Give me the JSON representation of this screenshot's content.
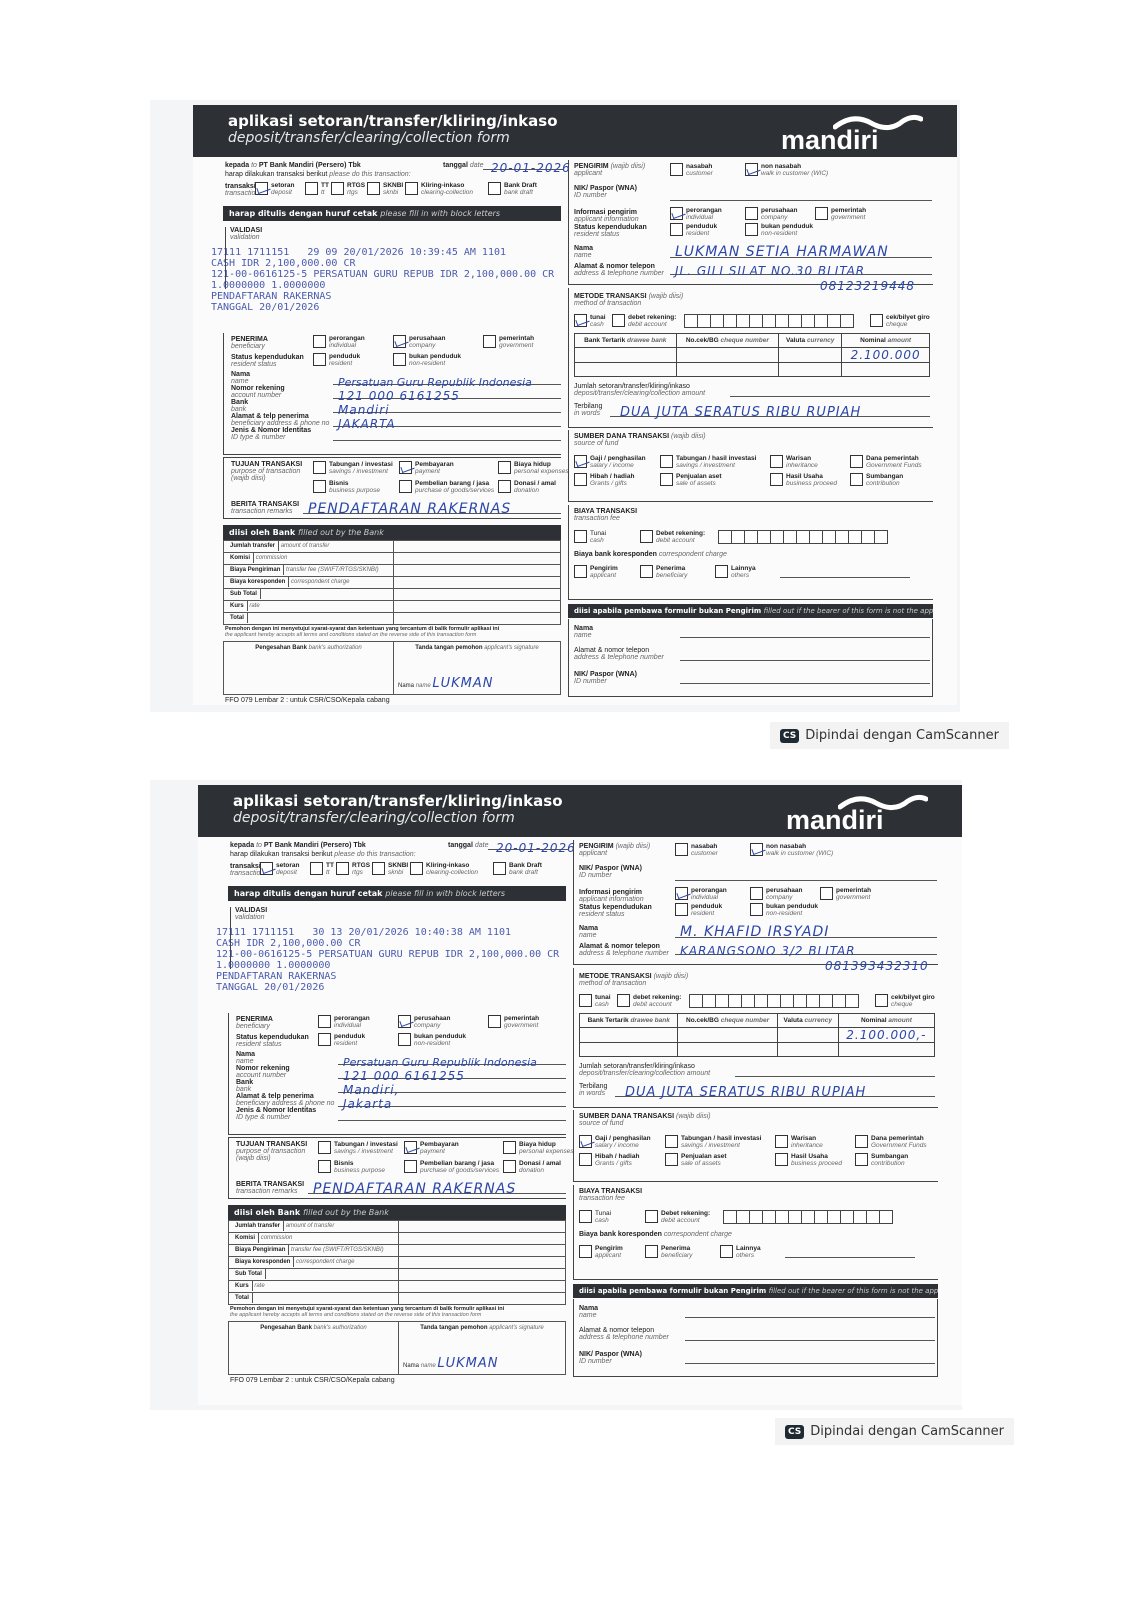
{
  "labels": {
    "title": "aplikasi setoran/transfer/kliring/inkaso",
    "subtitle": "deposit/transfer/clearing/collection form",
    "brand": "mandiri",
    "kepada": "kepada",
    "kepada_en": "to",
    "bank_name": "PT Bank Mandiri (Persero) Tbk",
    "tanggal": "tanggal",
    "tanggal_en": "date",
    "harap": "harap dilakukan transaksi berikut",
    "harap_en": "please do this transaction:",
    "transaksi": "transaksi",
    "transaksi_en": "transaction",
    "tx_types": [
      {
        "id": "setoran",
        "en": "deposit"
      },
      {
        "id": "TT",
        "en": "tt"
      },
      {
        "id": "RTGS",
        "en": "rtgs"
      },
      {
        "id": "SKNBI",
        "en": "sknbi"
      },
      {
        "id": "Kliring-inkaso",
        "en": "clearing-collection"
      },
      {
        "id": "Bank Draft",
        "en": "bank draft"
      }
    ],
    "block_letters": "harap ditulis dengan huruf cetak",
    "block_letters_en": "please fill in with block letters",
    "validasi": "VALIDASI",
    "validasi_en": "validation",
    "pengirim": "PENGIRIM",
    "wajib": "(wajib diisi)",
    "pengirim_en": "applicant",
    "customer_types": [
      {
        "id": "nasabah",
        "en": "customer"
      },
      {
        "id": "non nasabah",
        "en": "walk in customer (WIC)"
      }
    ],
    "nik": "NIK/ Paspor (WNA)",
    "nik_en": "ID number",
    "info_pengirim": "Informasi pengirim",
    "info_pengirim_en": "applicant information",
    "entity_types": [
      {
        "id": "perorangan",
        "en": "individual"
      },
      {
        "id": "perusahaan",
        "en": "company"
      },
      {
        "id": "pemerintah",
        "en": "government"
      }
    ],
    "status": "Status kependudukan",
    "status_en": "resident status",
    "resident_types": [
      {
        "id": "penduduk",
        "en": "resident"
      },
      {
        "id": "bukan penduduk",
        "en": "non-resident"
      }
    ],
    "nama": "Nama",
    "nama_en": "name",
    "alamat": "Alamat & nomor telepon",
    "alamat_en": "address & telephone number",
    "metode": "METODE TRANSAKSI",
    "metode_en": "method of transaction",
    "tunai": "tunai",
    "tunai_en": "cash",
    "debet": "debet rekening:",
    "debet_en": "debit account",
    "cek": "cek/bilyet giro",
    "cek_en": "cheque",
    "cheque_table_headers": [
      {
        "id": "Bank Tertarik",
        "en": "drawee bank"
      },
      {
        "id": "No.cek/BG",
        "en": "cheque number"
      },
      {
        "id": "Valuta",
        "en": "currency"
      },
      {
        "id": "Nominal",
        "en": "amount"
      }
    ],
    "jumlah": "Jumlah setoran/transfer/kliring/inkaso",
    "jumlah_en": "deposit/transfer/clearing/collection amount",
    "terbilang": "Terbilang",
    "terbilang_en": "in words",
    "sumber": "SUMBER DANA TRANSAKSI",
    "sumber_en": "source of fund",
    "fund_sources": [
      {
        "id": "Gaji / penghasilan",
        "en": "salary / income"
      },
      {
        "id": "Tabungan / hasil investasi",
        "en": "savings / investment"
      },
      {
        "id": "Warisan",
        "en": "inheritance"
      },
      {
        "id": "Dana pemerintah",
        "en": "Government Funds"
      },
      {
        "id": "Hibah / hadiah",
        "en": "Grants / gifts"
      },
      {
        "id": "Penjualan aset",
        "en": "sale of assets"
      },
      {
        "id": "Hasil Usaha",
        "en": "business proceed"
      },
      {
        "id": "Sumbangan",
        "en": "contribution"
      }
    ],
    "biaya": "BIAYA TRANSAKSI",
    "biaya_en": "transaction fee",
    "fee_tunai": "Tunai",
    "fee_tunai_en": "cash",
    "fee_debet": "Debet rekening:",
    "fee_debet_en": "debit account",
    "koresponden": "Biaya bank koresponden",
    "koresponden_en": "correspondent charge",
    "charge_types": [
      {
        "id": "Pengirim",
        "en": "applicant"
      },
      {
        "id": "Penerima",
        "en": "beneficiary"
      },
      {
        "id": "Lainnya",
        "en": "others"
      }
    ],
    "bearer": "diisi apabila pembawa formulir bukan Pengirim",
    "bearer_en": "filled out if the bearer of this form is not the applicant",
    "penerima": "PENERIMA",
    "penerima_en": "beneficiary",
    "rekening": "Nomor rekening",
    "rekening_en": "account number",
    "bank": "Bank",
    "bank_en": "bank",
    "alamat_penerima": "Alamat  & telp penerima",
    "alamat_penerima_en": "beneficiary address & phone no",
    "jenis_id": "Jenis & Nomor Identitas",
    "jenis_id_en": "ID type & number",
    "tujuan": "TUJUAN TRANSAKSI",
    "tujuan_en": "purpose of transaction",
    "purposes": [
      {
        "id": "Tabungan / investasi",
        "en": "savings / investment"
      },
      {
        "id": "Pembayaran",
        "en": "payment"
      },
      {
        "id": "Biaya hidup",
        "en": "personal expenses"
      },
      {
        "id": "Bisnis",
        "en": "business purpose"
      },
      {
        "id": "Pembelian barang / jasa",
        "en": "purchase of goods/services"
      },
      {
        "id": "Donasi / amal",
        "en": "donation"
      }
    ],
    "berita": "BERITA TRANSAKSI",
    "berita_en": "transaction remarks",
    "bank_bar": "diisi oleh Bank",
    "bank_bar_en": "filled out by the Bank",
    "bank_rows": [
      {
        "id": "Jumlah transfer",
        "en": "amount of transfer"
      },
      {
        "id": "Komisi",
        "en": "commission"
      },
      {
        "id": "Biaya Pengiriman",
        "en": "transfer fee (SWIFT/RTGS/SKNBI)"
      },
      {
        "id": "Biaya koresponden",
        "en": "correspondent charge"
      },
      {
        "id": "Sub Total",
        "en": ""
      },
      {
        "id": "Kurs",
        "en": "rate"
      },
      {
        "id": "Total",
        "en": ""
      }
    ],
    "consent": "Pemohon dengan ini menyetujui syarat-syarat dan ketentuan yang tercantum di balik formulir aplikasi ini",
    "consent_en": "the applicant hereby accepts all terms and conditions stated on the reverse side of this transaction form",
    "pengesahan": "Pengesahan Bank",
    "pengesahan_en": "bank's authorization",
    "tanda_tangan": "Tanda tangan pemohon",
    "tanda_tangan_en": "applicant's signature",
    "footer": "FFO 079 Lembar 2 : untuk CSR/CSO/Kepala cabang"
  },
  "forms": [
    {
      "date": "20-01-2026",
      "stamp": [
        "17111 1711151   29 09 20/01/2026 10:39:45 AM 1101",
        "CASH IDR 2,100,000.00 CR",
        "121-00-0616125-5 PERSATUAN GURU REPUB IDR 2,100,000.00 CR",
        "1.0000000 1.0000000",
        "PENDAFTARAN RAKERNAS",
        "TANGGAL 20/01/2026"
      ],
      "applicant_name": "LUKMAN SETIA HARMAWAN",
      "applicant_address": "JL. GILI SILAT NO.30 BLITAR",
      "applicant_phone": "08123219448",
      "amount": "2.100.000",
      "amount_words": "DUA JUTA SERATUS RIBU RUPIAH",
      "beneficiary_name": "Persatuan Guru Republik Indonesia",
      "account": "121 000 6161255",
      "bank": "Mandiri",
      "beneficiary_address": "JAKARTA",
      "remarks": "PENDAFTARAN RAKERNAS",
      "signature_name": "LUKMAN",
      "cash_checked": true
    },
    {
      "date": "20-01-2026",
      "stamp": [
        "17111 1711151   30 13 20/01/2026 10:40:38 AM 1101",
        "CASH IDR 2,100,000.00 CR",
        "121-00-0616125-5 PERSATUAN GURU REPUB IDR 2,100,000.00 CR",
        "1.0000000 1.0000000",
        "PENDAFTARAN RAKERNAS",
        "TANGGAL 20/01/2026"
      ],
      "applicant_name": "M. KHAFID IRSYADI",
      "applicant_address": "KARANGSONO 3/2 BLITAR",
      "applicant_phone": "081393432310",
      "amount": "2.100.000,-",
      "amount_words": "DUA JUTA SERATUS RIBU RUPIAH",
      "beneficiary_name": "Persatuan Guru Republik Indonesia",
      "account": "121 000 6161255",
      "bank": "Mandiri,",
      "beneficiary_address": "Jakarta",
      "remarks": "PENDAFTARAN RAKERNAS",
      "signature_name": "LUKMAN",
      "cash_checked": false
    }
  ],
  "camscanner": {
    "logo": "CS",
    "text": "Dipindai dengan CamScanner"
  },
  "colors": {
    "header": "#2d3034",
    "ink": "#2a46a8",
    "stamp": "#2b3fa0"
  }
}
